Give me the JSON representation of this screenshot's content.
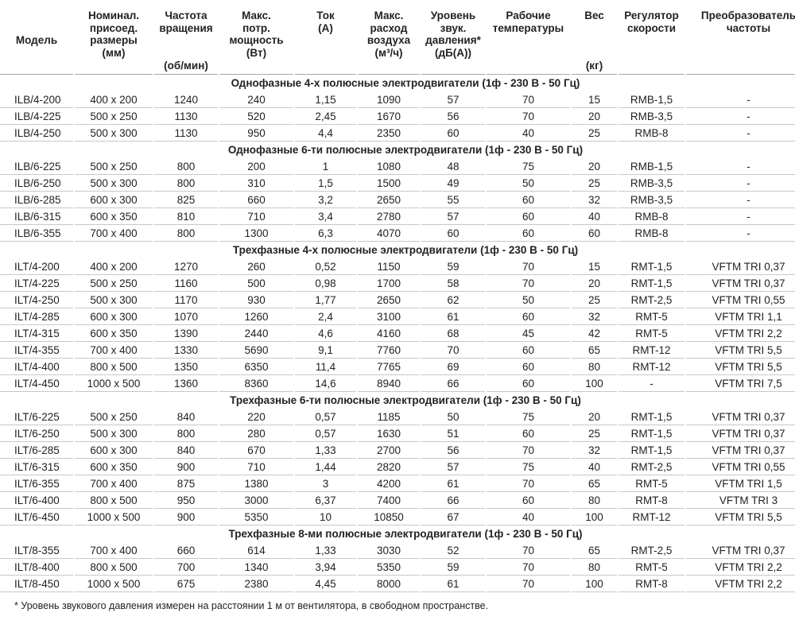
{
  "table": {
    "headers": [
      {
        "title": [
          "Модель"
        ]
      },
      {
        "title": [
          "Номинал.",
          "присоед.",
          "размеры",
          "(мм)"
        ]
      },
      {
        "title": [
          "Частота",
          "вращения"
        ],
        "unit": "(об/мин)"
      },
      {
        "title": [
          "Макс.",
          "потр.",
          "мощность",
          "(Вт)"
        ]
      },
      {
        "title": [
          "Ток",
          "(A)"
        ]
      },
      {
        "title": [
          "Макс.",
          "расход",
          "воздуха",
          "(м³/ч)"
        ]
      },
      {
        "title": [
          "Уровень",
          "звук.",
          "давления*",
          "(дБ(А))"
        ]
      },
      {
        "title": [
          "Рабочие",
          "температуры"
        ]
      },
      {
        "title": [
          "Вес"
        ],
        "unit": "(кг)"
      },
      {
        "title": [
          "Регулятор",
          "скорости"
        ]
      },
      {
        "title": [
          "Преобразователь",
          "частоты"
        ]
      }
    ],
    "sections": [
      {
        "title": "Однофазные 4-х полюсные электродвигатели (1ф - 230 В - 50 Гц)",
        "rows": [
          [
            "ILB/4-200",
            "400 x 200",
            "1240",
            "240",
            "1,15",
            "1090",
            "57",
            "70",
            "15",
            "RMB-1,5",
            "-"
          ],
          [
            "ILB/4-225",
            "500 x 250",
            "1130",
            "520",
            "2,45",
            "1670",
            "56",
            "70",
            "20",
            "RMB-3,5",
            "-"
          ],
          [
            "ILB/4-250",
            "500 x 300",
            "1130",
            "950",
            "4,4",
            "2350",
            "60",
            "40",
            "25",
            "RMB-8",
            "-"
          ]
        ]
      },
      {
        "title": "Однофазные 6-ти полюсные электродвигатели (1ф - 230 В - 50 Гц)",
        "rows": [
          [
            "ILB/6-225",
            "500 x 250",
            "800",
            "200",
            "1",
            "1080",
            "48",
            "75",
            "20",
            "RMB-1,5",
            "-"
          ],
          [
            "ILB/6-250",
            "500 x 300",
            "800",
            "310",
            "1,5",
            "1500",
            "49",
            "50",
            "25",
            "RMB-3,5",
            "-"
          ],
          [
            "ILB/6-285",
            "600 x 300",
            "825",
            "660",
            "3,2",
            "2650",
            "55",
            "60",
            "32",
            "RMB-3,5",
            "-"
          ],
          [
            "ILB/6-315",
            "600 x 350",
            "810",
            "710",
            "3,4",
            "2780",
            "57",
            "60",
            "40",
            "RMB-8",
            "-"
          ],
          [
            "ILB/6-355",
            "700 x 400",
            "800",
            "1300",
            "6,3",
            "4070",
            "60",
            "60",
            "60",
            "RMB-8",
            "-"
          ]
        ]
      },
      {
        "title": "Трехфазные 4-х полюсные электродвигатели (1ф - 230 В - 50 Гц)",
        "rows": [
          [
            "ILT/4-200",
            "400 x 200",
            "1270",
            "260",
            "0,52",
            "1150",
            "59",
            "70",
            "15",
            "RMT-1,5",
            "VFTM TRI 0,37"
          ],
          [
            "ILT/4-225",
            "500 x 250",
            "1160",
            "500",
            "0,98",
            "1700",
            "58",
            "70",
            "20",
            "RMT-1,5",
            "VFTM TRI 0,37"
          ],
          [
            "ILT/4-250",
            "500 x 300",
            "1170",
            "930",
            "1,77",
            "2650",
            "62",
            "50",
            "25",
            "RMT-2,5",
            "VFTM TRI 0,55"
          ],
          [
            "ILT/4-285",
            "600 x 300",
            "1070",
            "1260",
            "2,4",
            "3100",
            "61",
            "60",
            "32",
            "RMT-5",
            "VFTM TRI 1,1"
          ],
          [
            "ILT/4-315",
            "600 x 350",
            "1390",
            "2440",
            "4,6",
            "4160",
            "68",
            "45",
            "42",
            "RMT-5",
            "VFTM TRI 2,2"
          ],
          [
            "ILT/4-355",
            "700 x 400",
            "1330",
            "5690",
            "9,1",
            "7760",
            "70",
            "60",
            "65",
            "RMT-12",
            "VFTM TRI 5,5"
          ],
          [
            "ILT/4-400",
            "800 x 500",
            "1350",
            "6350",
            "11,4",
            "7765",
            "69",
            "60",
            "80",
            "RMT-12",
            "VFTM TRI 5,5"
          ],
          [
            "ILT/4-450",
            "1000 x 500",
            "1360",
            "8360",
            "14,6",
            "8940",
            "66",
            "60",
            "100",
            "-",
            "VFTM TRI 7,5"
          ]
        ]
      },
      {
        "title": "Трехфазные 6-ти полюсные электродвигатели (1ф - 230 В - 50 Гц)",
        "rows": [
          [
            "ILT/6-225",
            "500 x 250",
            "840",
            "220",
            "0,57",
            "1185",
            "50",
            "75",
            "20",
            "RMT-1,5",
            "VFTM TRI 0,37"
          ],
          [
            "ILT/6-250",
            "500 x 300",
            "800",
            "280",
            "0,57",
            "1630",
            "51",
            "60",
            "25",
            "RMT-1,5",
            "VFTM TRI 0,37"
          ],
          [
            "ILT/6-285",
            "600 x 300",
            "840",
            "670",
            "1,33",
            "2700",
            "56",
            "70",
            "32",
            "RMT-1,5",
            "VFTM TRI 0,37"
          ],
          [
            "ILT/6-315",
            "600 x 350",
            "900",
            "710",
            "1,44",
            "2820",
            "57",
            "75",
            "40",
            "RMT-2,5",
            "VFTM TRI 0,55"
          ],
          [
            "ILT/6-355",
            "700 x 400",
            "875",
            "1380",
            "3",
            "4200",
            "61",
            "70",
            "65",
            "RMT-5",
            "VFTM TRI 1,5"
          ],
          [
            "ILT/6-400",
            "800 x 500",
            "950",
            "3000",
            "6,37",
            "7400",
            "66",
            "60",
            "80",
            "RMT-8",
            "VFTM TRI 3"
          ],
          [
            "ILT/6-450",
            "1000 x 500",
            "900",
            "5350",
            "10",
            "10850",
            "67",
            "40",
            "100",
            "RMT-12",
            "VFTM TRI 5,5"
          ]
        ]
      },
      {
        "title": "Трехфазные 8-ми полюсные электродвигатели (1ф - 230 В - 50 Гц)",
        "rows": [
          [
            "ILT/8-355",
            "700 x 400",
            "660",
            "614",
            "1,33",
            "3030",
            "52",
            "70",
            "65",
            "RMT-2,5",
            "VFTM TRI 0,37"
          ],
          [
            "ILT/8-400",
            "800 x 500",
            "700",
            "1340",
            "3,94",
            "5350",
            "59",
            "70",
            "80",
            "RMT-5",
            "VFTM TRI 2,2"
          ],
          [
            "ILT/8-450",
            "1000 x 500",
            "675",
            "2380",
            "4,45",
            "8000",
            "61",
            "70",
            "100",
            "RMT-8",
            "VFTM TRI 2,2"
          ]
        ]
      }
    ],
    "footnote": "* Уровень звукового давления измерен на расстоянии 1 м от вентилятора, в свободном пространстве."
  }
}
